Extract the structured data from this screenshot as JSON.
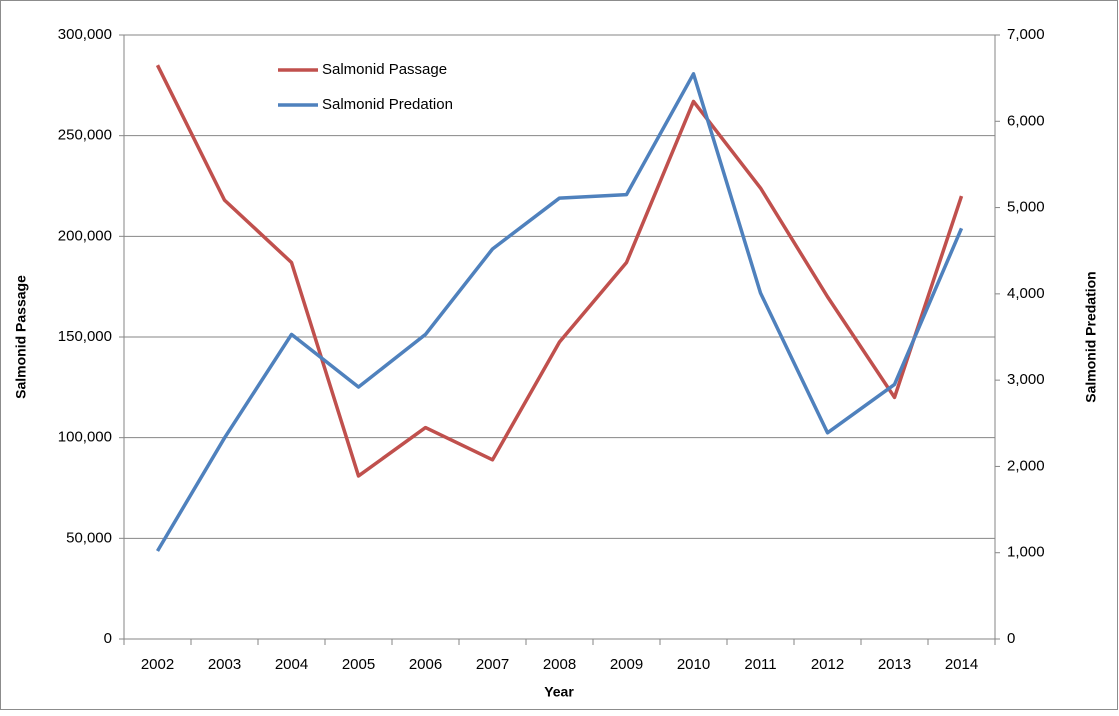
{
  "chart_data": {
    "type": "line",
    "x_label": "Year",
    "y_label": "Salmonid Passage",
    "y2_label": "Salmonid Predation",
    "categories": [
      "2002",
      "2003",
      "2004",
      "2005",
      "2006",
      "2007",
      "2008",
      "2009",
      "2010",
      "2011",
      "2012",
      "2013",
      "2014"
    ],
    "series": [
      {
        "name": "Salmonid Passage",
        "color": "#c0504d",
        "values": [
          285000,
          218000,
          187000,
          81000,
          105000,
          89000,
          147500,
          187000,
          267000,
          224000,
          170000,
          120000,
          220000
        ]
      },
      {
        "name": "Salmonid Predation",
        "color": "#4f81bd",
        "axis": "y2",
        "values": [
          1020,
          2330,
          3530,
          2920,
          3530,
          4520,
          5110,
          5150,
          6550,
          4010,
          2390,
          2950,
          4760
        ]
      }
    ],
    "ylim": [
      0,
      300000
    ],
    "yticks": [
      0,
      {
        "value": 50000,
        "label": "50,000"
      },
      {
        "value": 100000,
        "label": "100,000"
      },
      {
        "value": 150000,
        "label": "150,000"
      },
      {
        "value": 200000,
        "label": "200,000"
      },
      {
        "value": 250000,
        "label": "250,000"
      },
      {
        "value": 300000,
        "label": "300,000"
      }
    ],
    "y2lim": [
      0,
      7000
    ],
    "y2ticks": [
      0,
      {
        "value": 1000,
        "label": "1,000"
      },
      {
        "value": 2000,
        "label": "2,000"
      },
      {
        "value": 3000,
        "label": "3,000"
      },
      {
        "value": 4000,
        "label": "4,000"
      },
      {
        "value": 5000,
        "label": "5,000"
      },
      {
        "value": 6000,
        "label": "6,000"
      },
      {
        "value": 7000,
        "label": "7,000"
      }
    ],
    "grid": true,
    "legend": "top-left"
  }
}
